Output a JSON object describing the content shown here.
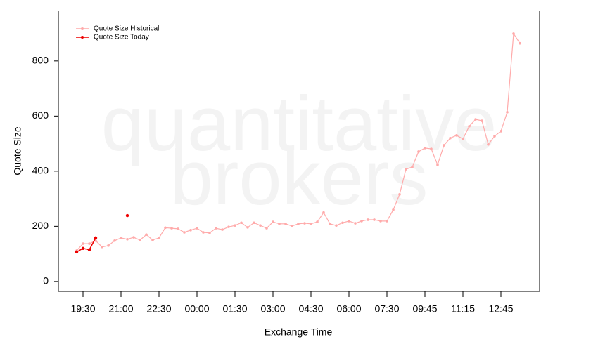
{
  "chart_data": {
    "type": "line",
    "watermark": [
      "quantitative",
      "brokers"
    ],
    "xlabel": "Exchange Time",
    "ylabel": "Quote Size",
    "categories": [
      null,
      "19:30",
      null,
      null,
      null,
      null,
      null,
      "21:00",
      null,
      null,
      null,
      null,
      null,
      "22:30",
      null,
      null,
      null,
      null,
      null,
      "00:00",
      null,
      null,
      null,
      null,
      null,
      "01:30",
      null,
      null,
      null,
      null,
      null,
      "03:00",
      null,
      null,
      null,
      null,
      null,
      "04:30",
      null,
      null,
      null,
      null,
      null,
      "06:00",
      null,
      null,
      null,
      null,
      null,
      "07:30",
      null,
      null,
      null,
      null,
      null,
      "09:45",
      null,
      null,
      null,
      null,
      null,
      "11:15",
      null,
      null,
      null,
      null,
      null,
      "12:45",
      null,
      null,
      null
    ],
    "series": [
      {
        "name": "Quote Size Historical",
        "color": "#ffaaaa",
        "values": [
          112,
          137,
          137,
          148,
          125,
          130,
          148,
          158,
          153,
          160,
          150,
          170,
          150,
          158,
          195,
          193,
          191,
          178,
          186,
          193,
          178,
          176,
          193,
          188,
          198,
          203,
          213,
          196,
          213,
          203,
          193,
          216,
          209,
          209,
          201,
          209,
          211,
          209,
          216,
          250,
          209,
          203,
          213,
          219,
          211,
          219,
          224,
          224,
          219,
          219,
          260,
          316,
          407,
          415,
          471,
          484,
          481,
          423,
          494,
          520,
          530,
          517,
          563,
          588,
          583,
          497,
          527,
          545,
          614,
          899,
          864
        ]
      },
      {
        "name": "Quote Size Today",
        "color": "#ee0000",
        "values": [
          107,
          120,
          115,
          158,
          null,
          null,
          null,
          null,
          239,
          null,
          null,
          null,
          null,
          null,
          null,
          null,
          null,
          null,
          null,
          null,
          null,
          null,
          null,
          null,
          null,
          null,
          null,
          null,
          null,
          null,
          null,
          null,
          null,
          null,
          null,
          null,
          null,
          null,
          null,
          null,
          null,
          null,
          null,
          null,
          null,
          null,
          null,
          null,
          null,
          null,
          null,
          null,
          null,
          null,
          null,
          null,
          null,
          null,
          null,
          null,
          null,
          null,
          null,
          null,
          null,
          null,
          null,
          null,
          null,
          null,
          null
        ]
      }
    ],
    "ylim": [
      -36,
      983
    ],
    "yticks": [
      0,
      200,
      400,
      600,
      800
    ],
    "legend": "top-left"
  }
}
